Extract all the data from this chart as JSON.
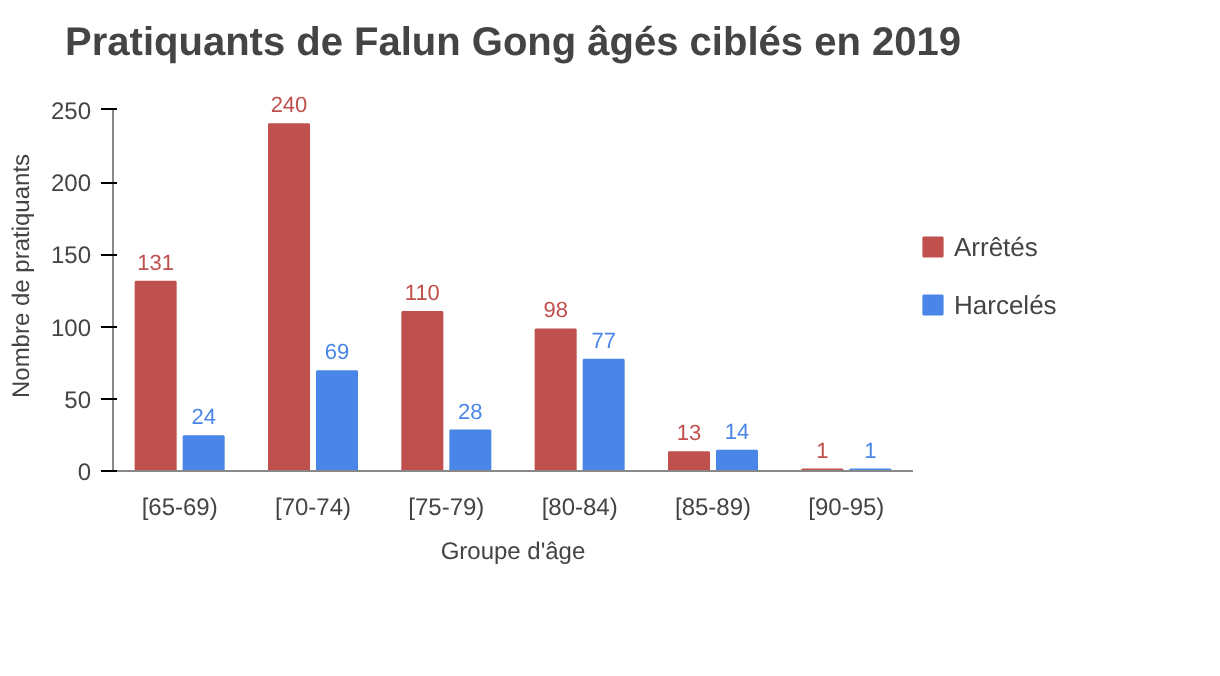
{
  "chart_data": {
    "type": "bar",
    "title": "Pratiquants de Falun Gong âgés ciblés en 2019",
    "xlabel": "Groupe d'âge",
    "ylabel": "Nombre de pratiquants",
    "categories": [
      "[65-69)",
      "[70-74)",
      "[75-79)",
      "[80-84)",
      "[85-89)",
      "[90-95)"
    ],
    "series": [
      {
        "name": "Arrêtés",
        "color": "#c0504d",
        "values": [
          131,
          240,
          110,
          98,
          13,
          1
        ]
      },
      {
        "name": "Harcelés",
        "color": "#4a86e8",
        "values": [
          24,
          69,
          28,
          77,
          14,
          1
        ]
      }
    ],
    "ylim": [
      0,
      250
    ],
    "yticks": [
      0,
      50,
      100,
      150,
      200,
      250
    ],
    "grid": false,
    "legend": "right",
    "data_labels": true
  }
}
